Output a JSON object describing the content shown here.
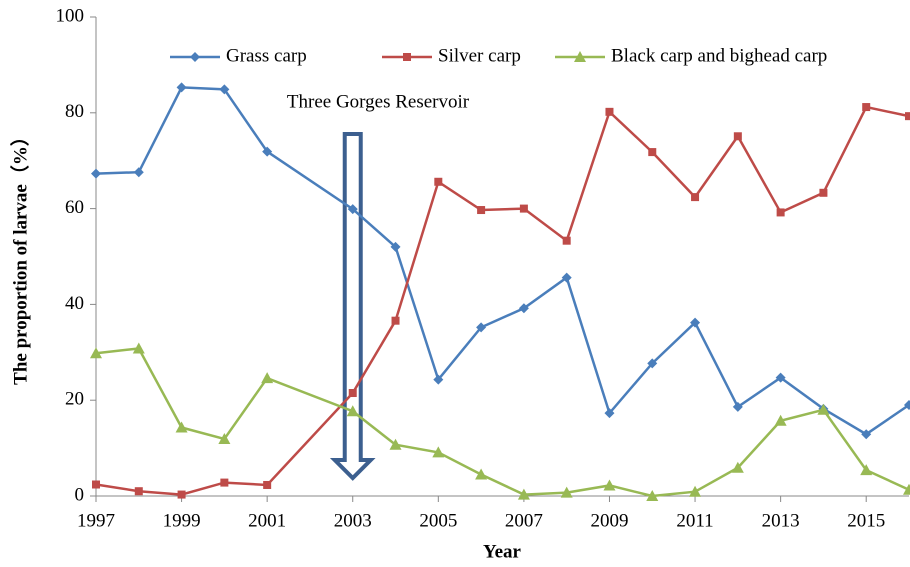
{
  "chart_data": {
    "type": "line",
    "x": [
      1997,
      1998,
      1999,
      2000,
      2001,
      2003,
      2004,
      2005,
      2006,
      2007,
      2008,
      2009,
      2010,
      2011,
      2012,
      2013,
      2014,
      2015,
      2016
    ],
    "series": [
      {
        "name": "Grass carp",
        "color": "#4a7ebb",
        "marker": "diamond",
        "values": [
          67.3,
          67.6,
          85.3,
          84.9,
          71.9,
          59.9,
          52,
          24.3,
          35.2,
          39.2,
          45.6,
          17.3,
          27.7,
          36.2,
          18.6,
          24.7,
          18.2,
          12.9,
          19
        ]
      },
      {
        "name": "Silver carp",
        "color": "#be4b48",
        "marker": "square",
        "values": [
          2.4,
          1.0,
          0.3,
          2.8,
          2.3,
          21.5,
          36.6,
          65.6,
          59.7,
          60,
          53.3,
          80.2,
          71.8,
          62.4,
          75.1,
          59.2,
          63.3,
          81.2,
          79.3
        ]
      },
      {
        "name": "Black carp and bighead carp",
        "color": "#98b954",
        "marker": "triangle",
        "values": [
          29.8,
          30.8,
          14.3,
          11.9,
          24.6,
          17.7,
          10.7,
          9.1,
          4.5,
          0.3,
          0.7,
          2.2,
          0,
          0.9,
          5.9,
          15.7,
          18,
          5.4,
          1.3
        ]
      }
    ],
    "xlim": [
      1997,
      2016
    ],
    "xticks": [
      1997,
      1999,
      2001,
      2003,
      2005,
      2007,
      2009,
      2011,
      2013,
      2015
    ],
    "ylim": [
      0,
      100
    ],
    "yticks": [
      0,
      20,
      40,
      60,
      80,
      100
    ],
    "x_label": "Year",
    "y_label": "The proportion of larvae（%）",
    "annotation": {
      "text": "Three Gorges Reservoir",
      "x": 2003
    },
    "legend": "top"
  }
}
